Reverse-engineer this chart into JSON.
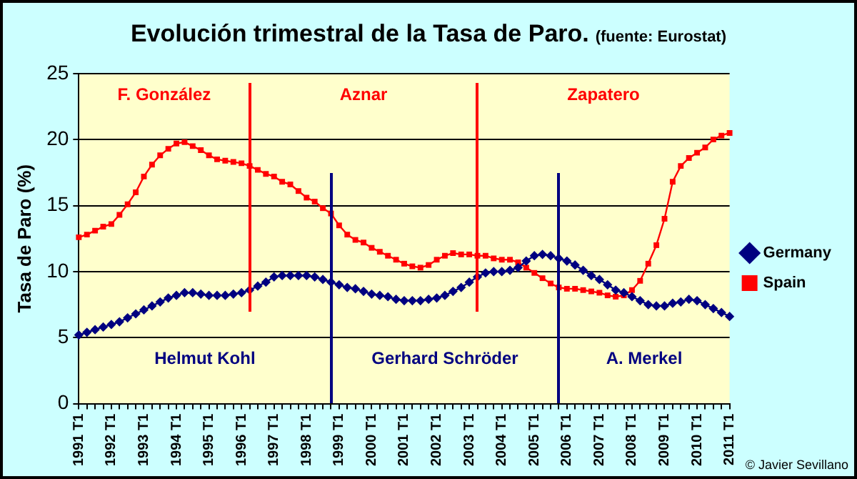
{
  "chart_data": {
    "type": "line",
    "title": "Evolución trimestral de la Tasa de Paro.",
    "subtitle": "(fuente: Eurostat)",
    "ylabel": "Tasa de Paro (%)",
    "categories": [
      "1991 T1",
      null,
      null,
      null,
      "1992 T1",
      null,
      null,
      null,
      "1993 T1",
      null,
      null,
      null,
      "1994 T1",
      null,
      null,
      null,
      "1995 T1",
      null,
      null,
      null,
      "1996 T1",
      null,
      null,
      null,
      "1997 T1",
      null,
      null,
      null,
      "1998 T1",
      null,
      null,
      null,
      "1999 T1",
      null,
      null,
      null,
      "2000 T1",
      null,
      null,
      null,
      "2001 T1",
      null,
      null,
      null,
      "2002 T1",
      null,
      null,
      null,
      "2003 T1",
      null,
      null,
      null,
      "2004 T1",
      null,
      null,
      null,
      "2005 T1",
      null,
      null,
      null,
      "2006 T1",
      null,
      null,
      null,
      "2007 T1",
      null,
      null,
      null,
      "2008 T1",
      null,
      null,
      null,
      "2009 T1",
      null,
      null,
      null,
      "2010 T1",
      null,
      null,
      null,
      "2011 T1"
    ],
    "series": [
      {
        "name": "Germany",
        "color": "#000080",
        "marker": "diamond",
        "values": [
          5.2,
          5.4,
          5.6,
          5.8,
          6.0,
          6.2,
          6.5,
          6.8,
          7.1,
          7.4,
          7.7,
          8.0,
          8.2,
          8.4,
          8.4,
          8.3,
          8.2,
          8.2,
          8.2,
          8.3,
          8.4,
          8.6,
          8.9,
          9.2,
          9.6,
          9.7,
          9.7,
          9.7,
          9.7,
          9.6,
          9.4,
          9.2,
          9.0,
          8.8,
          8.7,
          8.5,
          8.3,
          8.2,
          8.1,
          7.9,
          7.8,
          7.8,
          7.8,
          7.9,
          8.0,
          8.2,
          8.5,
          8.8,
          9.2,
          9.6,
          9.9,
          10.0,
          10.0,
          10.1,
          10.3,
          10.8,
          11.2,
          11.3,
          11.2,
          11.0,
          10.8,
          10.5,
          10.1,
          9.7,
          9.4,
          9.0,
          8.6,
          8.4,
          8.1,
          7.8,
          7.5,
          7.4,
          7.4,
          7.6,
          7.7,
          7.9,
          7.8,
          7.5,
          7.2,
          6.9,
          6.6
        ]
      },
      {
        "name": "Spain",
        "color": "#ff0000",
        "marker": "square",
        "values": [
          12.6,
          12.8,
          13.1,
          13.4,
          13.6,
          14.3,
          15.1,
          16.0,
          17.2,
          18.1,
          18.8,
          19.3,
          19.7,
          19.8,
          19.5,
          19.2,
          18.8,
          18.5,
          18.4,
          18.3,
          18.2,
          18.0,
          17.7,
          17.4,
          17.2,
          16.8,
          16.6,
          16.1,
          15.6,
          15.3,
          14.8,
          14.4,
          13.5,
          12.8,
          12.4,
          12.2,
          11.8,
          11.5,
          11.2,
          10.9,
          10.6,
          10.4,
          10.3,
          10.5,
          10.9,
          11.2,
          11.4,
          11.3,
          11.3,
          11.2,
          11.2,
          11.0,
          10.9,
          10.9,
          10.7,
          10.3,
          9.9,
          9.5,
          9.1,
          8.8,
          8.7,
          8.7,
          8.6,
          8.5,
          8.4,
          8.2,
          8.1,
          8.2,
          8.6,
          9.3,
          10.6,
          12.0,
          14.0,
          16.8,
          18.0,
          18.6,
          19.0,
          19.4,
          20.0,
          20.3,
          20.5
        ]
      }
    ],
    "ylim": [
      0,
      25
    ],
    "yticks": [
      0,
      5,
      10,
      15,
      20,
      25
    ],
    "grid": "y",
    "legend": "right",
    "line_style": "solid",
    "annotations": [
      "F. González",
      "Aznar",
      "Zapatero",
      "Helmut Kohl",
      "Gerhard Schröder",
      "A. Merkel",
      "© Javier Sevillano"
    ]
  }
}
